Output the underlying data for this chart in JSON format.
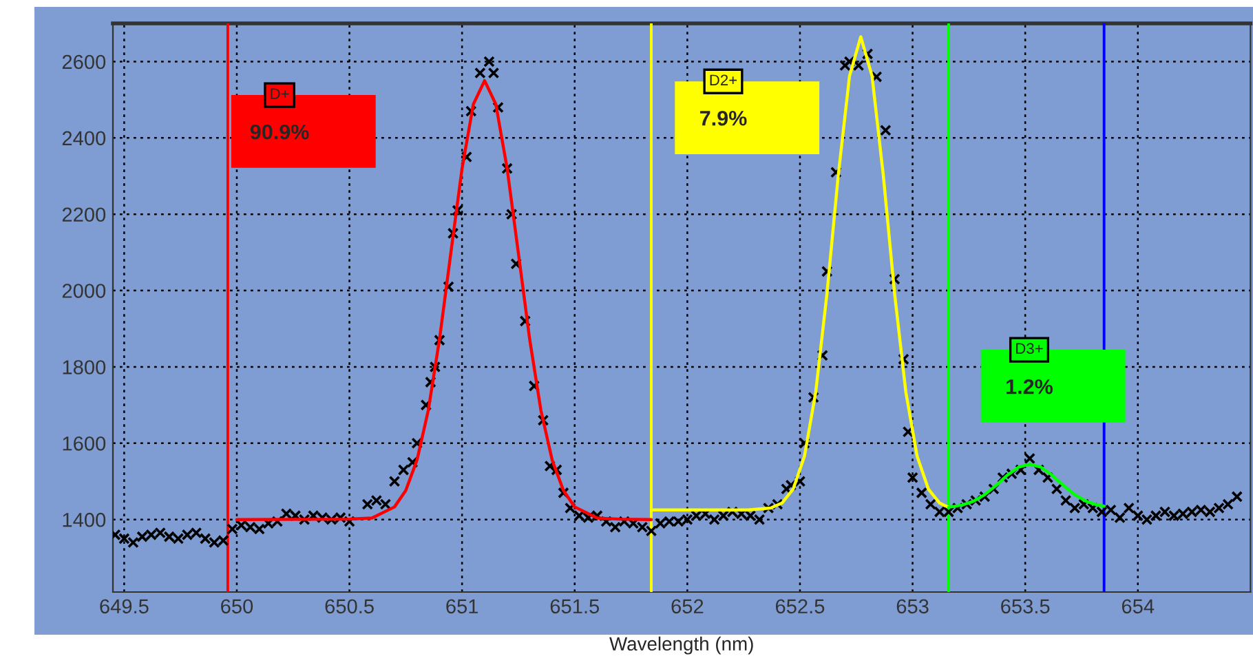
{
  "chart_data": {
    "type": "scatter",
    "xlabel": "Wavelength (nm)",
    "xlim": [
      649.45,
      654.5
    ],
    "xticks": [
      649.5,
      650,
      650.5,
      651,
      651.5,
      652,
      652.5,
      653,
      653.5,
      654
    ],
    "ylim": [
      1210,
      2700
    ],
    "yticks": [
      1400,
      1600,
      1800,
      2000,
      2200,
      2400,
      2600
    ],
    "grid": true,
    "series": [
      {
        "marker": "cross",
        "color": "#000000",
        "x": [
          649.46,
          649.5,
          649.54,
          649.58,
          649.62,
          649.66,
          649.7,
          649.74,
          649.78,
          649.82,
          649.86,
          649.9,
          649.94,
          649.98,
          650.02,
          650.06,
          650.1,
          650.14,
          650.18,
          650.22,
          650.26,
          650.3,
          650.34,
          650.38,
          650.42,
          650.46,
          650.5,
          650.58,
          650.62,
          650.66,
          650.7,
          650.74,
          650.78,
          650.8,
          650.84,
          650.86,
          650.88,
          650.9,
          650.94,
          650.96,
          650.98,
          651.02,
          651.04,
          651.08,
          651.12,
          651.14,
          651.16,
          651.2,
          651.22,
          651.24,
          651.28,
          651.32,
          651.36,
          651.39,
          651.42,
          651.45,
          651.48,
          651.52,
          651.56,
          651.6,
          651.64,
          651.68,
          651.72,
          651.76,
          651.8,
          651.84,
          651.88,
          651.92,
          651.96,
          652.0,
          652.04,
          652.08,
          652.12,
          652.16,
          652.2,
          652.24,
          652.28,
          652.32,
          652.36,
          652.4,
          652.44,
          652.46,
          652.5,
          652.52,
          652.56,
          652.6,
          652.62,
          652.66,
          652.7,
          652.72,
          652.76,
          652.8,
          652.84,
          652.88,
          652.92,
          652.96,
          652.98,
          653.0,
          653.04,
          653.08,
          653.12,
          653.16,
          653.2,
          653.24,
          653.28,
          653.32,
          653.36,
          653.4,
          653.44,
          653.48,
          653.52,
          653.56,
          653.6,
          653.64,
          653.68,
          653.72,
          653.76,
          653.8,
          653.84,
          653.88,
          653.92,
          653.96,
          654.0,
          654.04,
          654.08,
          654.12,
          654.16,
          654.2,
          654.24,
          654.28,
          654.32,
          654.36,
          654.4,
          654.44
        ],
        "values": [
          1360,
          1350,
          1340,
          1355,
          1360,
          1365,
          1355,
          1350,
          1360,
          1365,
          1350,
          1340,
          1345,
          1375,
          1385,
          1380,
          1375,
          1390,
          1395,
          1415,
          1410,
          1400,
          1410,
          1405,
          1400,
          1405,
          1395,
          1440,
          1450,
          1440,
          1500,
          1530,
          1550,
          1600,
          1700,
          1760,
          1800,
          1870,
          2010,
          2150,
          2210,
          2350,
          2470,
          2570,
          2600,
          2570,
          2480,
          2320,
          2200,
          2070,
          1920,
          1750,
          1660,
          1540,
          1530,
          1470,
          1430,
          1410,
          1405,
          1410,
          1395,
          1380,
          1395,
          1390,
          1380,
          1370,
          1390,
          1395,
          1395,
          1400,
          1410,
          1415,
          1400,
          1410,
          1420,
          1415,
          1410,
          1400,
          1430,
          1440,
          1480,
          1490,
          1500,
          1600,
          1720,
          1830,
          2050,
          2310,
          2590,
          2600,
          2590,
          2620,
          2560,
          2420,
          2030,
          1820,
          1630,
          1510,
          1470,
          1440,
          1420,
          1420,
          1430,
          1440,
          1450,
          1460,
          1480,
          1510,
          1520,
          1530,
          1560,
          1530,
          1510,
          1480,
          1450,
          1430,
          1440,
          1430,
          1420,
          1425,
          1405,
          1430,
          1410,
          1400,
          1410,
          1420,
          1410,
          1415,
          1420,
          1425,
          1420,
          1430,
          1440,
          1460
        ]
      },
      {
        "type": "line",
        "name": "D+",
        "color": "#ff0000",
        "x": [
          650.0,
          650.5,
          650.6,
          650.7,
          650.75,
          650.8,
          650.85,
          650.9,
          650.95,
          651.0,
          651.05,
          651.1,
          651.15,
          651.2,
          651.25,
          651.3,
          651.35,
          651.4,
          651.45,
          651.5,
          651.6,
          651.7,
          651.84
        ],
        "values": [
          1400,
          1401,
          1404,
          1433,
          1476,
          1556,
          1686,
          1873,
          2098,
          2320,
          2488,
          2550,
          2488,
          2320,
          2098,
          1873,
          1686,
          1556,
          1476,
          1433,
          1404,
          1401,
          1400
        ]
      },
      {
        "type": "line",
        "name": "D2+",
        "color": "#ffff00",
        "x": [
          651.84,
          652.27,
          652.37,
          652.42,
          652.47,
          652.52,
          652.57,
          652.62,
          652.67,
          652.72,
          652.77,
          652.82,
          652.87,
          652.92,
          652.97,
          653.02,
          653.07,
          653.12,
          653.16
        ],
        "values": [
          1425,
          1425,
          1430,
          1443,
          1480,
          1566,
          1734,
          1993,
          2302,
          2562,
          2665,
          2562,
          2302,
          1993,
          1734,
          1566,
          1480,
          1443,
          1432
        ]
      },
      {
        "type": "line",
        "name": "D3+",
        "color": "#00ff00",
        "x": [
          653.16,
          653.22,
          653.27,
          653.32,
          653.37,
          653.42,
          653.47,
          653.52,
          653.57,
          653.62,
          653.67,
          653.72,
          653.77,
          653.82,
          653.85
        ],
        "values": [
          1432,
          1438,
          1448,
          1465,
          1489,
          1516,
          1537,
          1545,
          1537,
          1516,
          1489,
          1465,
          1448,
          1438,
          1435
        ]
      }
    ],
    "annotations": [
      "90.9%",
      "7.9%",
      "1.2%"
    ],
    "ref_lines": [
      {
        "axis": "x",
        "value": 649.96,
        "color": "#ff0000"
      },
      {
        "axis": "x",
        "value": 651.84,
        "color": "#ffff00"
      },
      {
        "axis": "x",
        "value": 653.16,
        "color": "#00ff00"
      },
      {
        "axis": "x",
        "value": 653.85,
        "color": "#0000ff"
      }
    ]
  }
}
